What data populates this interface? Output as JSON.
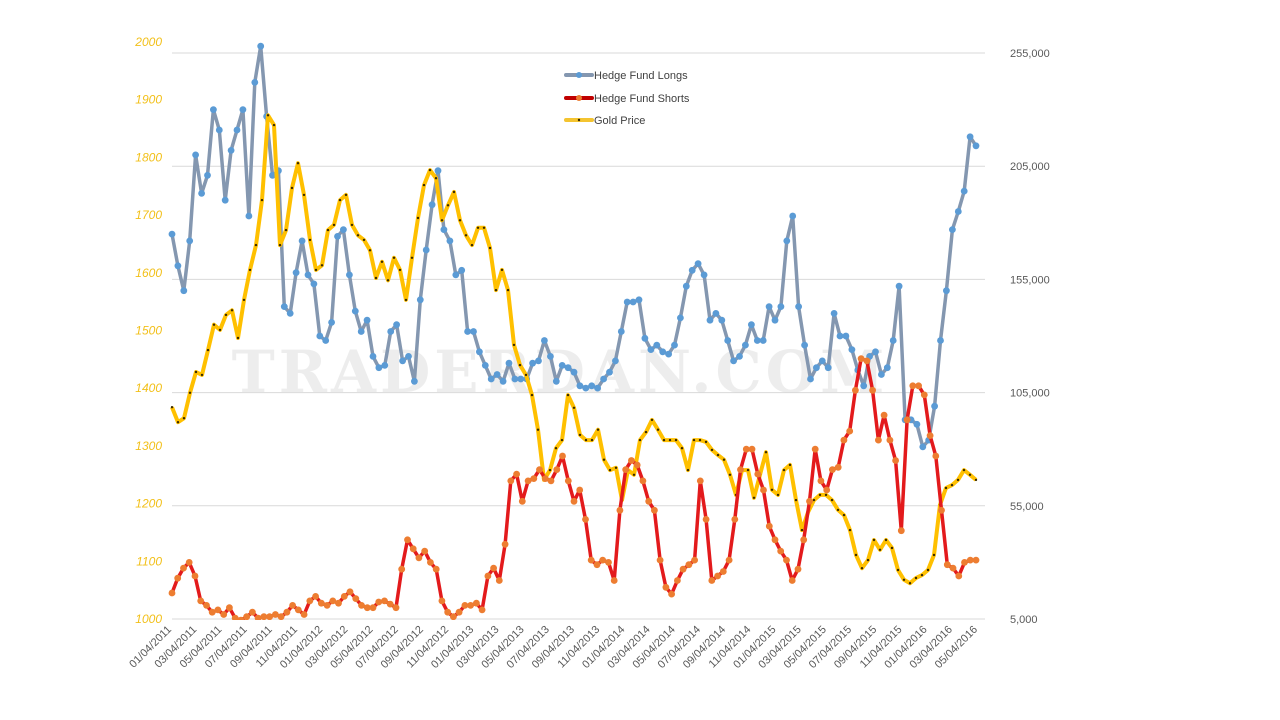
{
  "chart_data": {
    "type": "line",
    "title": "",
    "watermark": "TRADERDAN.COM",
    "x_interval": "approximately bi-weekly, evenly spaced from 01/04/2011 to 05/04/2016",
    "x_tick_labels": [
      "01/04/2011",
      "03/04/2011",
      "05/04/2011",
      "07/04/2011",
      "09/04/2011",
      "11/04/2011",
      "01/04/2012",
      "03/04/2012",
      "05/04/2012",
      "07/04/2012",
      "09/04/2012",
      "11/04/2012",
      "01/04/2013",
      "03/04/2013",
      "05/04/2013",
      "07/04/2013",
      "09/04/2013",
      "11/04/2013",
      "01/04/2014",
      "03/04/2014",
      "05/04/2014",
      "07/04/2014",
      "09/04/2014",
      "11/04/2014",
      "01/04/2015",
      "03/04/2015",
      "05/04/2015",
      "07/04/2015",
      "09/04/2015",
      "11/04/2015",
      "01/04/2016",
      "03/04/2016",
      "05/04/2016"
    ],
    "left_axis": {
      "label": "",
      "ylim": [
        1000,
        2000
      ],
      "ticks": [
        "1000",
        "1100",
        "1200",
        "1300",
        "1400",
        "1500",
        "1600",
        "1700",
        "1800",
        "1900",
        "2000"
      ]
    },
    "right_axis": {
      "label": "",
      "ylim": [
        5000,
        255000
      ],
      "ticks": [
        "5,000",
        "55,000",
        "105,000",
        "155,000",
        "205,000",
        "255,000"
      ]
    },
    "grid": true,
    "legend": {
      "placement": "top-center",
      "entries": [
        "Hedge Fund Longs",
        "Hedge Fund Shorts",
        "Gold Price"
      ]
    },
    "colors": {
      "longs_line": "#8497b0",
      "longs_marker": "#5b9bd5",
      "shorts_line": "#e31a1c",
      "shorts_marker": "#ed7d31",
      "gold_line": "#ffc000",
      "gold_marker": "#3a2a00",
      "grid": "#d9d9d9"
    },
    "series": [
      {
        "name": "Hedge Fund Longs",
        "axis": "right",
        "unit": "contracts (thousands)",
        "values": [
          175,
          161,
          150,
          172,
          210,
          193,
          201,
          230,
          221,
          190,
          212,
          221,
          230,
          183,
          242,
          258,
          227,
          201,
          203,
          143,
          140,
          158,
          172,
          157,
          153,
          130,
          128,
          136,
          174,
          177,
          157,
          141,
          132,
          137,
          121,
          116,
          117,
          132,
          135,
          119,
          121,
          110,
          146,
          168,
          188,
          203,
          177,
          172,
          157,
          159,
          132,
          132,
          123,
          117,
          111,
          113,
          110,
          118,
          111,
          111,
          111,
          118,
          119,
          128,
          121,
          110,
          117,
          116,
          114,
          108,
          107,
          108,
          107,
          111,
          114,
          119,
          132,
          145,
          145,
          146,
          129,
          124,
          126,
          123,
          122,
          126,
          138,
          152,
          159,
          162,
          157,
          137,
          140,
          137,
          128,
          119,
          121,
          126,
          135,
          128,
          128,
          143,
          137,
          143,
          172,
          183,
          143,
          126,
          111,
          116,
          119,
          116,
          140,
          130,
          130,
          124,
          115,
          108,
          121,
          123,
          113,
          116,
          128,
          152,
          93,
          93,
          91,
          81,
          84,
          99,
          128,
          150,
          177,
          185,
          194,
          218,
          214
        ]
      },
      {
        "name": "Hedge Fund Shorts",
        "axis": "right",
        "unit": "contracts (thousands)",
        "values": [
          16.5,
          23,
          27.5,
          30,
          24,
          13,
          11,
          8,
          9,
          7,
          10,
          5.4,
          4.5,
          6,
          8,
          5.4,
          6,
          6,
          7,
          6,
          8,
          11,
          9,
          7,
          13,
          15,
          12,
          11,
          13,
          12,
          15,
          17,
          14,
          11,
          10,
          10,
          12.5,
          13,
          11.6,
          10,
          27,
          40,
          36,
          32,
          35,
          30,
          27,
          13,
          8,
          6,
          8,
          11,
          11,
          12,
          9,
          24,
          27.5,
          22,
          38,
          66,
          69,
          57,
          66,
          67,
          71,
          67,
          66,
          71,
          77,
          66,
          57,
          62,
          49,
          31,
          29,
          31,
          30,
          22,
          53,
          71,
          75,
          73,
          66,
          57,
          53,
          31,
          19,
          16,
          22,
          27,
          29,
          31,
          66,
          49,
          22,
          24,
          26,
          31,
          49,
          71,
          80,
          80,
          69,
          62,
          46,
          40,
          35,
          31,
          22,
          27,
          40,
          57,
          80,
          66,
          62,
          71,
          72,
          84,
          88,
          106,
          120,
          119,
          106,
          84,
          95,
          84,
          75,
          44,
          93,
          108,
          108,
          104,
          86,
          77,
          53,
          29,
          27.5,
          24,
          30,
          31,
          31
        ]
      },
      {
        "name": "Gold Price",
        "axis": "left",
        "unit": "USD/oz",
        "values": [
          1367,
          1341,
          1348,
          1392,
          1428,
          1423,
          1466,
          1510,
          1501,
          1527,
          1535,
          1487,
          1553,
          1605,
          1648,
          1726,
          1873,
          1856,
          1648,
          1674,
          1747,
          1790,
          1735,
          1657,
          1605,
          1613,
          1674,
          1683,
          1726,
          1735,
          1683,
          1665,
          1657,
          1639,
          1591,
          1619,
          1587,
          1626,
          1605,
          1553,
          1626,
          1695,
          1752,
          1778,
          1764,
          1691,
          1717,
          1740,
          1691,
          1665,
          1648,
          1678,
          1678,
          1643,
          1570,
          1605,
          1570,
          1475,
          1440,
          1423,
          1388,
          1328,
          1241,
          1258,
          1296,
          1310,
          1388,
          1366,
          1319,
          1310,
          1310,
          1328,
          1276,
          1258,
          1262,
          1206,
          1258,
          1250,
          1310,
          1324,
          1345,
          1328,
          1310,
          1310,
          1310,
          1296,
          1258,
          1310,
          1310,
          1307,
          1293,
          1284,
          1276,
          1250,
          1215,
          1258,
          1258,
          1210,
          1250,
          1289,
          1224,
          1215,
          1258,
          1267,
          1206,
          1154,
          1185,
          1206,
          1215,
          1215,
          1206,
          1189,
          1180,
          1154,
          1111,
          1088,
          1102,
          1137,
          1120,
          1137,
          1123,
          1085,
          1068,
          1062,
          1071,
          1076,
          1085,
          1111,
          1198,
          1227,
          1232,
          1241,
          1258,
          1250,
          1241
        ]
      }
    ]
  }
}
